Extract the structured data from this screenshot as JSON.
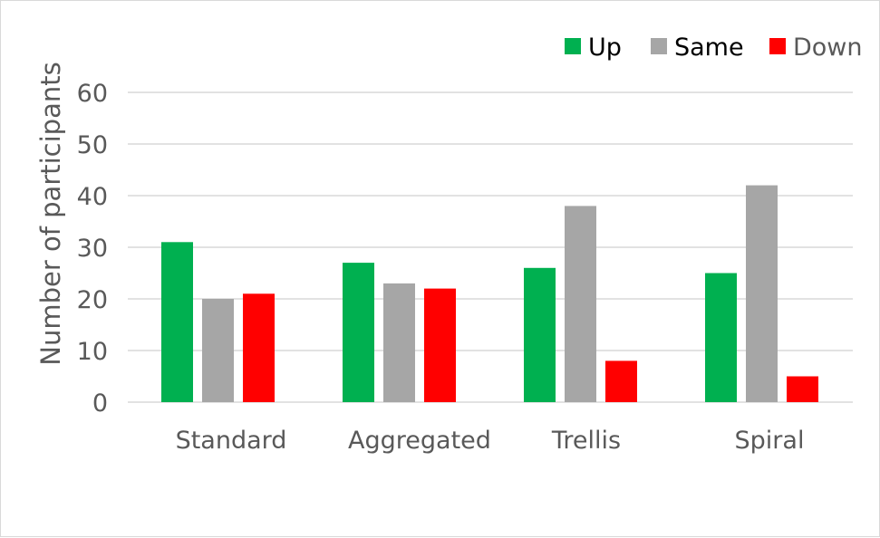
{
  "chart_data": {
    "type": "bar",
    "categories": [
      "Standard",
      "Aggregated",
      "Trellis",
      "Spiral"
    ],
    "series": [
      {
        "name": "Up",
        "color": "#00b050",
        "values": [
          31,
          27,
          26,
          25
        ]
      },
      {
        "name": "Same",
        "color": "#a6a6a6",
        "values": [
          20,
          23,
          38,
          42
        ]
      },
      {
        "name": "Down",
        "color": "#ff0000",
        "values": [
          21,
          22,
          8,
          5
        ]
      }
    ],
    "ylabel": "Number of participants",
    "ylim": [
      0,
      60
    ],
    "yticks": [
      0,
      10,
      20,
      30,
      40,
      50,
      60
    ],
    "grid": true,
    "legend_position": "top-right"
  }
}
